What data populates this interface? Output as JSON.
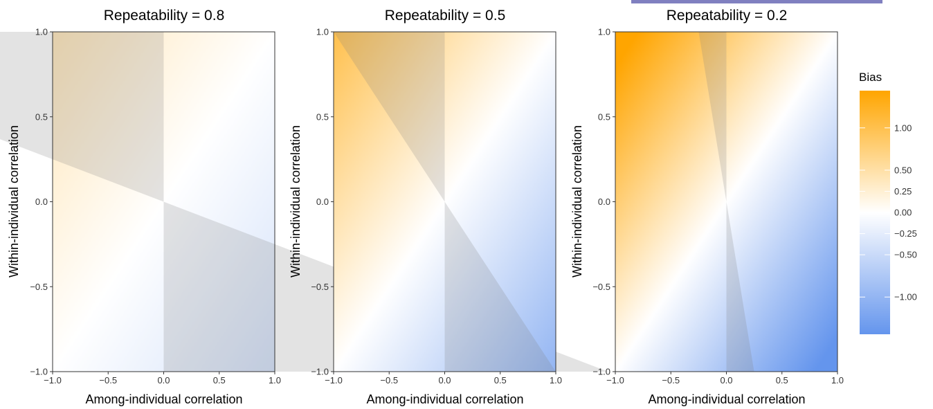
{
  "chart_data": [
    {
      "type": "heatmap",
      "title": "Repeatability = 0.8",
      "repeatability": 0.8,
      "xlabel": "Among-individual correlation",
      "ylabel": "Within-individual correlation",
      "xlim": [
        -1,
        1
      ],
      "ylim": [
        -1,
        1
      ],
      "xticks": [
        "−1.0",
        "−0.5",
        "0.0",
        "0.5",
        "1.0"
      ],
      "yticks": [
        "−1.0",
        "−0.5",
        "0.0",
        "0.5",
        "1.0"
      ]
    },
    {
      "type": "heatmap",
      "title": "Repeatability = 0.5",
      "repeatability": 0.5,
      "xlabel": "Among-individual correlation",
      "ylabel": "Within-individual correlation",
      "xlim": [
        -1,
        1
      ],
      "ylim": [
        -1,
        1
      ],
      "xticks": [
        "−1.0",
        "−0.5",
        "0.0",
        "0.5",
        "1.0"
      ],
      "yticks": [
        "−1.0",
        "−0.5",
        "0.0",
        "0.5",
        "1.0"
      ]
    },
    {
      "type": "heatmap",
      "title": "Repeatability = 0.2",
      "repeatability": 0.2,
      "xlabel": "Among-individual correlation",
      "ylabel": "Within-individual correlation",
      "xlim": [
        -1,
        1
      ],
      "ylim": [
        -1,
        1
      ],
      "xticks": [
        "−1.0",
        "−0.5",
        "0.0",
        "0.5",
        "1.0"
      ],
      "yticks": [
        "−1.0",
        "−0.5",
        "0.0",
        "0.5",
        "1.0"
      ]
    }
  ],
  "legend": {
    "title": "Bias",
    "range": [
      -1.44,
      1.44
    ],
    "low_color": "#6495ed",
    "mid_color": "#ffffff",
    "high_color": "#ffa500",
    "ticks": [
      {
        "value": 1.0,
        "label": "1.00"
      },
      {
        "value": 0.5,
        "label": "0.50"
      },
      {
        "value": 0.25,
        "label": "0.25"
      },
      {
        "value": 0.0,
        "label": "0.00"
      },
      {
        "value": -0.25,
        "label": "−0.25"
      },
      {
        "value": -0.5,
        "label": "−0.50"
      },
      {
        "value": -1.0,
        "label": "−1.00"
      }
    ]
  },
  "colors": {
    "shade": "#808080",
    "banner": "#8080c0"
  }
}
